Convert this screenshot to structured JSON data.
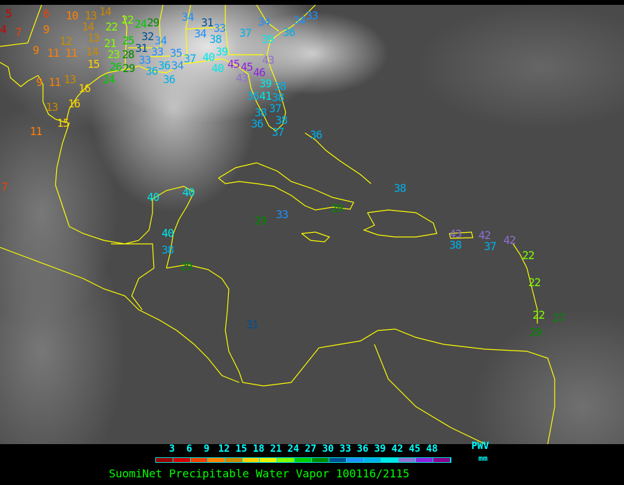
{
  "legend": {
    "ticks": [
      "3",
      "6",
      "9",
      "12",
      "15",
      "18",
      "21",
      "24",
      "27",
      "30",
      "33",
      "36",
      "39",
      "42",
      "45",
      "48"
    ],
    "colors": [
      "#990000",
      "#d00000",
      "#f04000",
      "#ff8000",
      "#cc8800",
      "#ffd000",
      "#e8f000",
      "#80ff00",
      "#00cc00",
      "#008800",
      "#004f8f",
      "#1e90ff",
      "#00b0e8",
      "#00e8e8",
      "#9070d0",
      "#9020e0",
      "#8b008b"
    ],
    "quantity": "PWV",
    "unit": "mm"
  },
  "title": "SuomiNet Precipitable Water Vapor 100116/2115",
  "coastline_color": "#ffff00",
  "stations": [
    "5",
    "6",
    "10",
    "13",
    "14",
    "4",
    "7",
    "9",
    "14",
    "22",
    "22",
    "24",
    "29",
    "12",
    "13",
    "21",
    "25",
    "32",
    "34",
    "31",
    "33",
    "9",
    "11",
    "11",
    "14",
    "23",
    "28",
    "33",
    "15",
    "35",
    "37",
    "40",
    "40",
    "45",
    "45",
    "43",
    "46",
    "43",
    "36",
    "36",
    "34",
    "26",
    "29",
    "9",
    "11",
    "13",
    "16",
    "24",
    "36",
    "39",
    "38",
    "36",
    "41",
    "38",
    "13",
    "16",
    "15",
    "11",
    "34",
    "31",
    "34",
    "33",
    "38",
    "39",
    "37",
    "34",
    "39",
    "36",
    "34",
    "33",
    "38",
    "36",
    "37",
    "38",
    "37",
    "36",
    "40",
    "40",
    "40",
    "38",
    "29",
    "29",
    "33",
    "29",
    "38",
    "31",
    "43",
    "38",
    "42",
    "37",
    "42",
    "22",
    "22",
    "22",
    "27",
    "29",
    "7"
  ]
}
